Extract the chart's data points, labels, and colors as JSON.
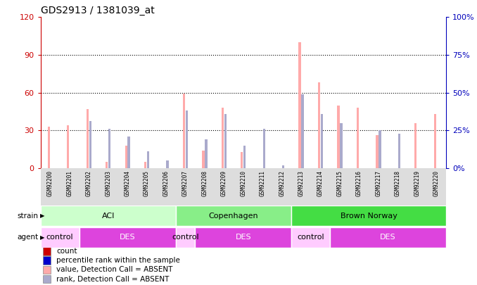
{
  "title": "GDS2913 / 1381039_at",
  "samples": [
    "GSM92200",
    "GSM92201",
    "GSM92202",
    "GSM92203",
    "GSM92204",
    "GSM92205",
    "GSM92206",
    "GSM92207",
    "GSM92208",
    "GSM92209",
    "GSM92210",
    "GSM92211",
    "GSM92212",
    "GSM92213",
    "GSM92214",
    "GSM92215",
    "GSM92216",
    "GSM92217",
    "GSM92218",
    "GSM92219",
    "GSM92220"
  ],
  "count_values": [
    33,
    34,
    47,
    5,
    18,
    5,
    0,
    59,
    14,
    48,
    13,
    0,
    0,
    100,
    68,
    50,
    48,
    26,
    0,
    36,
    43
  ],
  "rank_values": [
    0,
    0,
    31,
    26,
    21,
    11,
    5,
    38,
    19,
    36,
    15,
    26,
    2,
    49,
    36,
    30,
    0,
    25,
    23,
    0,
    0
  ],
  "all_absent": [
    true,
    true,
    true,
    true,
    true,
    true,
    true,
    true,
    true,
    true,
    true,
    true,
    true,
    true,
    true,
    true,
    true,
    true,
    true,
    true,
    true
  ],
  "count_color_present": "#cc0000",
  "count_color_absent": "#ffaaaa",
  "rank_color_present": "#0000cc",
  "rank_color_absent": "#aaaacc",
  "ylim_left": [
    0,
    120
  ],
  "ylim_right": [
    0,
    100
  ],
  "yticks_left": [
    0,
    30,
    60,
    90,
    120
  ],
  "yticks_right": [
    0,
    25,
    50,
    75,
    100
  ],
  "ytick_labels_left": [
    "0",
    "30",
    "60",
    "90",
    "120"
  ],
  "ytick_labels_right": [
    "0%",
    "25%",
    "50%",
    "75%",
    "100%"
  ],
  "strain_groups": [
    {
      "label": "ACI",
      "start": 0,
      "end": 7,
      "color": "#ccffcc"
    },
    {
      "label": "Copenhagen",
      "start": 7,
      "end": 13,
      "color": "#88ee88"
    },
    {
      "label": "Brown Norway",
      "start": 13,
      "end": 21,
      "color": "#44dd44"
    }
  ],
  "agent_groups": [
    {
      "label": "control",
      "start": 0,
      "end": 2,
      "color": "#ffccff"
    },
    {
      "label": "DES",
      "start": 2,
      "end": 7,
      "color": "#dd44dd"
    },
    {
      "label": "control",
      "start": 7,
      "end": 8,
      "color": "#ffccff"
    },
    {
      "label": "DES",
      "start": 8,
      "end": 13,
      "color": "#dd44dd"
    },
    {
      "label": "control",
      "start": 13,
      "end": 15,
      "color": "#ffccff"
    },
    {
      "label": "DES",
      "start": 15,
      "end": 21,
      "color": "#dd44dd"
    }
  ],
  "legend_items": [
    {
      "label": "count",
      "color": "#cc0000"
    },
    {
      "label": "percentile rank within the sample",
      "color": "#0000cc"
    },
    {
      "label": "value, Detection Call = ABSENT",
      "color": "#ffaaaa"
    },
    {
      "label": "rank, Detection Call = ABSENT",
      "color": "#aaaacc"
    }
  ],
  "bar_width": 0.12,
  "background_color": "#ffffff",
  "axis_label_color_left": "#cc0000",
  "axis_label_color_right": "#0000bb",
  "tick_bg_color": "#dddddd"
}
